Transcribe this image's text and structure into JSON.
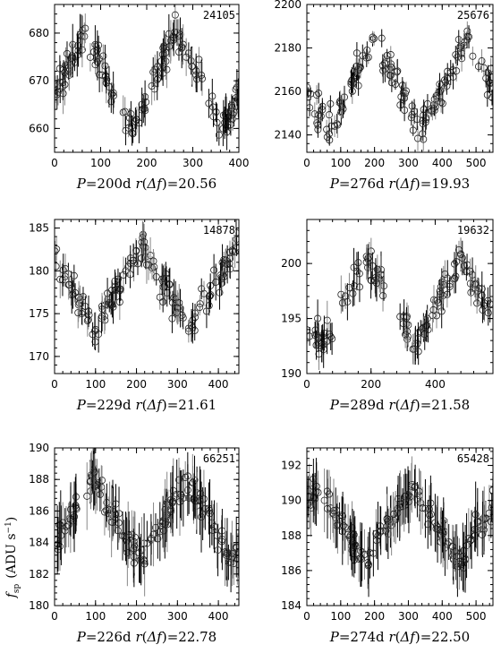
{
  "y_axis_label": "f",
  "y_axis_label_sub": "sp",
  "y_axis_label_unit": "(ADU s",
  "y_axis_label_exp": "−1",
  "y_axis_label_close": ")",
  "chart_data": [
    {
      "type": "scatter",
      "id_label": "24105",
      "caption": "P=200d r(Δf)=20.56",
      "period_days": 200,
      "xlim": [
        0,
        400
      ],
      "ylim": [
        655,
        686
      ],
      "xticks": [
        0,
        100,
        200,
        300,
        400
      ],
      "yticks": [
        660,
        670,
        680
      ],
      "mean": 670,
      "amplitude": 10,
      "peak_phase": 0.32,
      "peak_days": [
        65,
        265
      ],
      "trough_days": [
        165,
        365
      ],
      "error_bar": 3,
      "n_points": 150
    },
    {
      "type": "scatter",
      "id_label": "25676",
      "caption": "P=276d r(Δf)=19.93",
      "period_days": 276,
      "xlim": [
        0,
        550
      ],
      "ylim": [
        2132,
        2200
      ],
      "xticks": [
        0,
        100,
        200,
        300,
        400,
        500
      ],
      "yticks": [
        2140,
        2160,
        2180,
        2200
      ],
      "mean": 2163,
      "amplitude": 21,
      "peak_phase": 0.72,
      "peak_days": [
        200,
        476
      ],
      "trough_days": [
        88,
        364
      ],
      "error_bar": 4,
      "n_points": 150
    },
    {
      "type": "scatter",
      "id_label": "14878",
      "caption": "P=229d r(Δf)=21.61",
      "period_days": 229,
      "xlim": [
        0,
        450
      ],
      "ylim": [
        168,
        186
      ],
      "xticks": [
        0,
        100,
        200,
        300,
        400
      ],
      "yticks": [
        170,
        175,
        180,
        185
      ],
      "mean": 178,
      "amplitude": 5,
      "peak_phase": 0.93,
      "peak_days": [
        213,
        442
      ],
      "trough_days": [
        100,
        329
      ],
      "error_bar": 1.5,
      "n_points": 150
    },
    {
      "type": "scatter",
      "id_label": "19632",
      "caption": "P=289d r(Δf)=21.58",
      "period_days": 289,
      "xlim": [
        0,
        580
      ],
      "ylim": [
        190,
        204
      ],
      "xticks": [
        0,
        200,
        400
      ],
      "yticks": [
        190,
        195,
        200
      ],
      "mean": 196.5,
      "amplitude": 4,
      "peak_phase": 0.66,
      "peak_days": [
        190,
        479
      ],
      "trough_days": [
        75,
        364
      ],
      "gaps": [
        [
          240,
          280
        ]
      ],
      "error_bar": 1.2,
      "n_points": 140
    },
    {
      "type": "scatter",
      "id_label": "66251",
      "caption": "P=226d r(Δf)=22.78",
      "period_days": 226,
      "xlim": [
        0,
        450
      ],
      "ylim": [
        180,
        190
      ],
      "xticks": [
        0,
        100,
        200,
        300,
        400
      ],
      "yticks": [
        180,
        182,
        184,
        186,
        188,
        190
      ],
      "mean": 185.5,
      "amplitude": 2.5,
      "peak_phase": 0.42,
      "peak_days": [
        95,
        321
      ],
      "trough_days": [
        208,
        434
      ],
      "error_bar": 1.5,
      "n_points": 170
    },
    {
      "type": "scatter",
      "id_label": "65428",
      "caption": "P=274d r(Δf)=22.50",
      "period_days": 274,
      "xlim": [
        0,
        550
      ],
      "ylim": [
        184,
        193
      ],
      "xticks": [
        0,
        100,
        200,
        300,
        400,
        500
      ],
      "yticks": [
        184,
        186,
        188,
        190,
        192
      ],
      "mean": 188.7,
      "amplitude": 2.2,
      "peak_phase": 0.13,
      "peak_days": [
        36,
        310
      ],
      "trough_days": [
        173,
        447
      ],
      "error_bar": 1.3,
      "n_points": 170
    }
  ]
}
